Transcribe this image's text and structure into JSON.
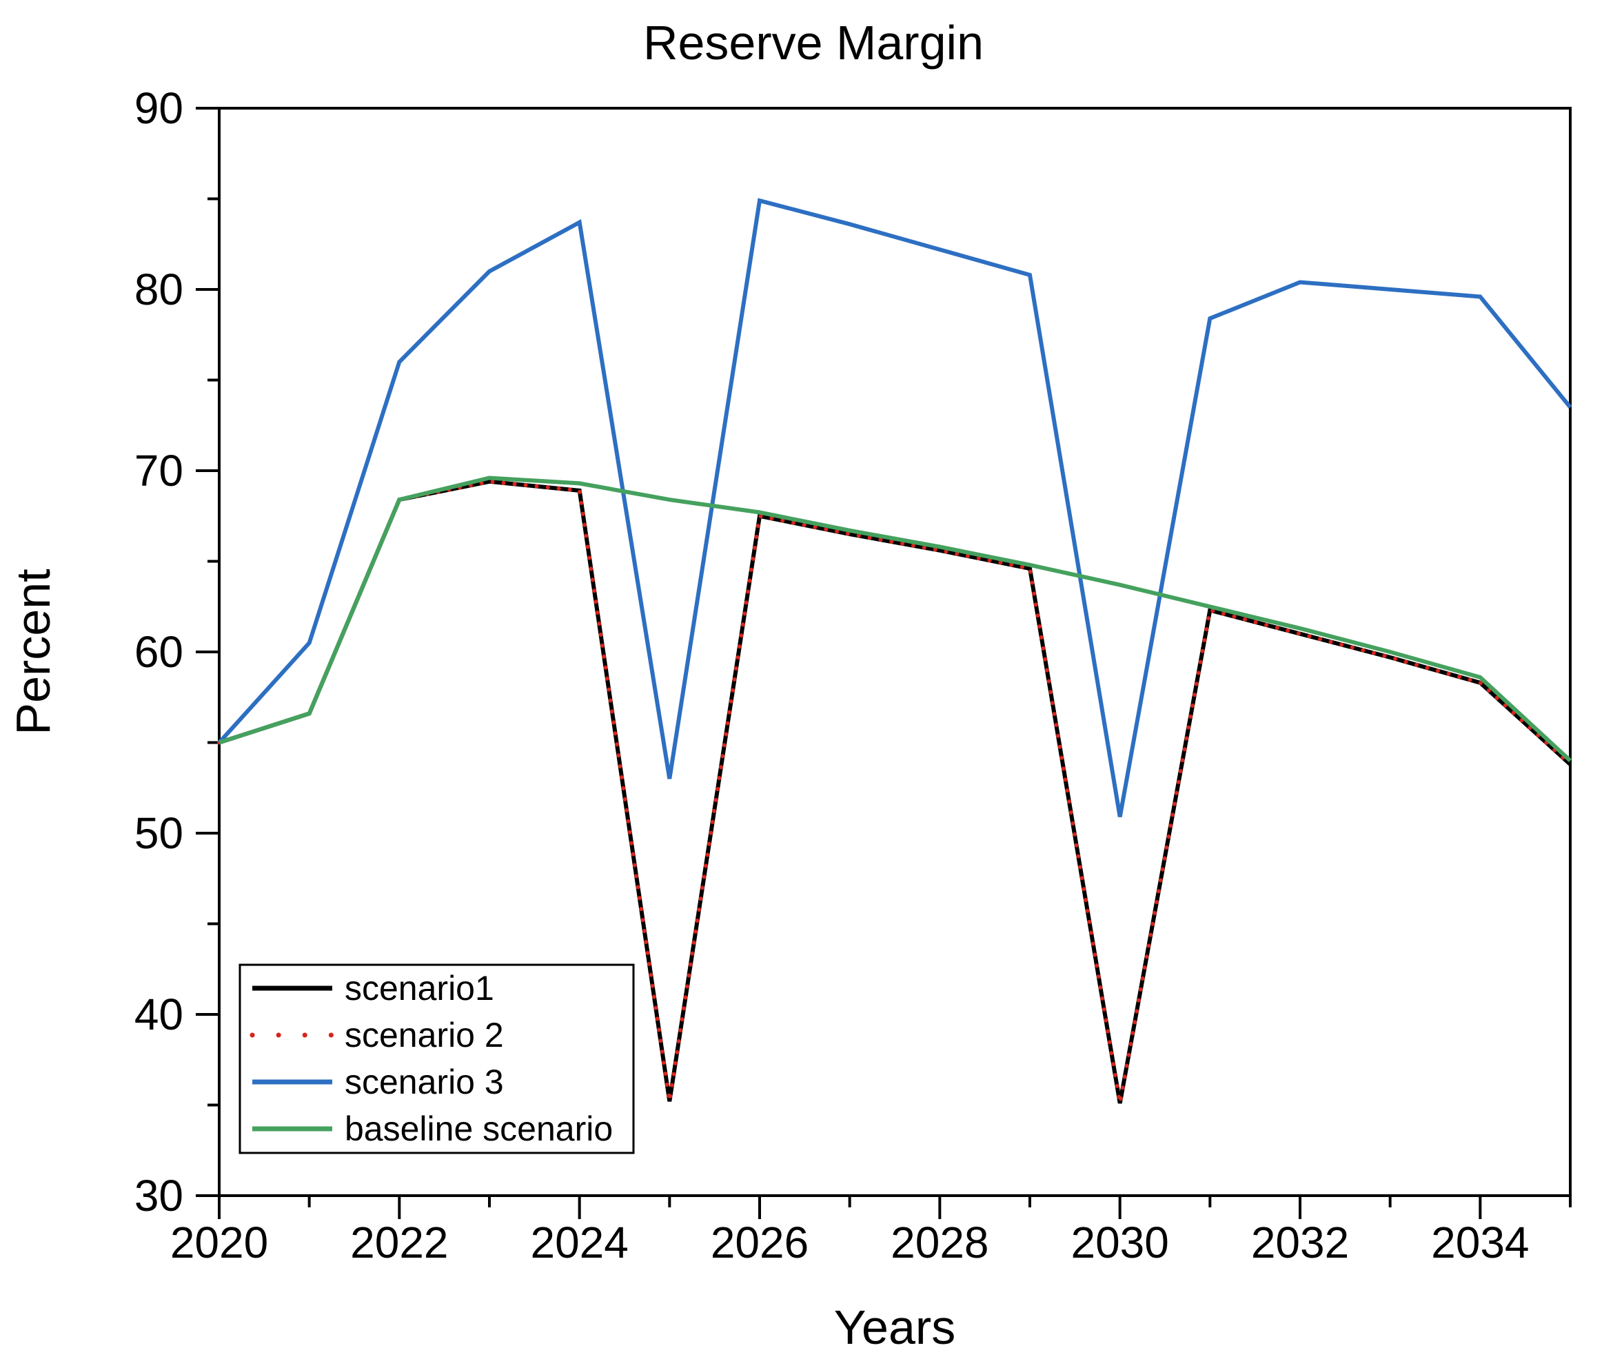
{
  "chart_data": {
    "type": "line",
    "title": "Reserve Margin",
    "xlabel": "Years",
    "ylabel": "Percent",
    "xlim": [
      2020,
      2035
    ],
    "ylim": [
      30,
      90
    ],
    "grid": false,
    "legend_position": "bottom-left",
    "x": [
      2020,
      2021,
      2022,
      2023,
      2024,
      2025,
      2026,
      2027,
      2028,
      2029,
      2030,
      2031,
      2032,
      2033,
      2034,
      2035
    ],
    "x_axis": {
      "major_ticks": [
        2020,
        2022,
        2024,
        2026,
        2028,
        2030,
        2032,
        2034
      ],
      "minor_ticks": [
        2021,
        2023,
        2025,
        2027,
        2029,
        2031,
        2033,
        2035
      ]
    },
    "y_axis": {
      "major_ticks": [
        90,
        80,
        70,
        60,
        50,
        40,
        30
      ],
      "minor_ticks": [
        85,
        75,
        65,
        55,
        45,
        35
      ]
    },
    "series": [
      {
        "name": "scenario1",
        "color": "#000000",
        "line_style": "solid",
        "values": [
          55.0,
          56.6,
          68.4,
          69.4,
          68.9,
          35.2,
          67.5,
          66.5,
          65.6,
          64.6,
          35.1,
          62.3,
          61.0,
          59.7,
          58.3,
          53.8
        ]
      },
      {
        "name": "scenario 2",
        "color": "#d6251d",
        "line_style": "dotted",
        "values": [
          55.0,
          56.6,
          68.4,
          69.4,
          68.9,
          35.2,
          67.5,
          66.5,
          65.6,
          64.6,
          35.1,
          62.3,
          61.0,
          59.7,
          58.3,
          53.8
        ]
      },
      {
        "name": "scenario 3",
        "color": "#2d6fc2",
        "line_style": "solid",
        "values": [
          55.0,
          60.5,
          76.0,
          81.0,
          83.7,
          53.0,
          84.9,
          83.6,
          82.2,
          80.8,
          50.9,
          78.4,
          80.4,
          80.0,
          79.6,
          73.5
        ]
      },
      {
        "name": "baseline scenario",
        "color": "#45a15e",
        "line_style": "solid",
        "values": [
          55.0,
          56.6,
          68.4,
          69.6,
          69.3,
          68.4,
          67.7,
          66.7,
          65.8,
          64.8,
          63.7,
          62.5,
          61.3,
          60.0,
          58.6,
          54.0
        ]
      }
    ]
  }
}
